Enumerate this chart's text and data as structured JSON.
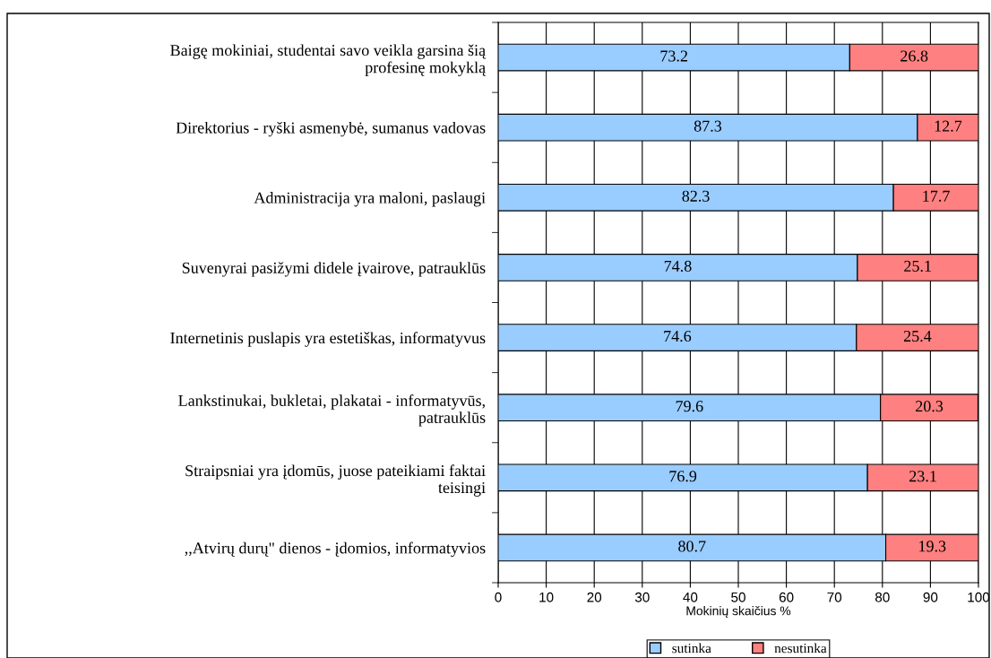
{
  "chart_data": {
    "type": "bar",
    "orientation": "horizontal",
    "stacked": true,
    "xlabel": "Mokinių skaičius %",
    "categories": [
      "Baigę mokiniai, studentai savo veikla garsina šią\nprofesinę mokyklą",
      "Direktorius - ryški asmenybė, sumanus vadovas",
      "Administracija yra maloni, paslaugi",
      "Suvenyrai pasižymi didele įvairove, patrauklūs",
      "Internetinis puslapis yra estetiškas, informatyvus",
      "Lankstinukai, bukletai, plakatai - informatyvūs,\npatrauklūs",
      "Straipsniai yra įdomūs, juose pateikiami faktai\nteisingi",
      ",,Atvirų durų\" dienos - įdomios, informatyvios"
    ],
    "series": [
      {
        "name": "sutinka",
        "color": "#99ccff",
        "values": [
          73.2,
          87.3,
          82.3,
          74.8,
          74.6,
          79.6,
          76.9,
          80.7
        ]
      },
      {
        "name": "nesutinka",
        "color": "#ff8080",
        "values": [
          26.8,
          12.7,
          17.7,
          25.1,
          25.4,
          20.3,
          23.1,
          19.3
        ]
      }
    ],
    "xlim": [
      0,
      100
    ],
    "xticks": [
      0,
      10,
      20,
      30,
      40,
      50,
      60,
      70,
      80,
      90,
      100
    ],
    "grid": "x",
    "legend": "bottom",
    "data_labels": true
  }
}
